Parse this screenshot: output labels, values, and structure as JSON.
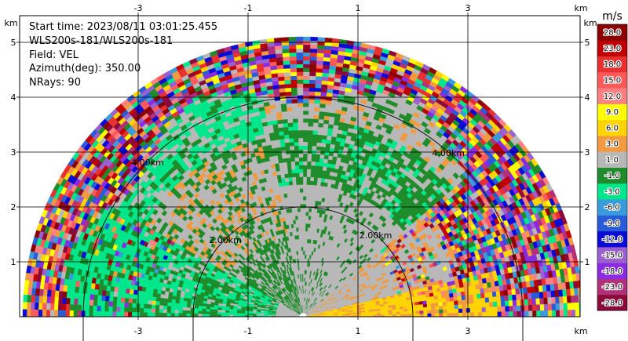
{
  "chart_data": {
    "type": "heatmap",
    "subtype": "polar-rhi-radar",
    "info": [
      "Start time: 2023/08/11 03:01:25.455",
      "WLS200s-181/WLS200s-181",
      "Field: VEL",
      "Azimuth(deg): 350.00",
      "NRays: 90"
    ],
    "x_ticks": [
      "-3",
      "-1",
      "1",
      "3"
    ],
    "x_tick_values": [
      -3,
      -1,
      1,
      3
    ],
    "y_ticks": [
      "1",
      "2",
      "3",
      "4",
      "5"
    ],
    "y_tick_values": [
      1,
      2,
      3,
      4,
      5
    ],
    "unit_label": "km",
    "xlim": [
      -6.0,
      4.1
    ],
    "ylim": [
      0,
      5.9
    ],
    "max_range_km": 5.1,
    "rings": [
      {
        "radius_km": 2,
        "label": "2.00km"
      },
      {
        "radius_km": 4,
        "label": "4.00km"
      }
    ],
    "colorbar": {
      "title": "m/s",
      "levels": [
        "-28.0",
        "-23.0",
        "-18.0",
        "-15.0",
        "-12.0",
        "-9.0",
        "-6.0",
        "-3.0",
        "-1.0",
        "1.0",
        "3.0",
        "6.0",
        "9.0",
        "12.0",
        "15.0",
        "18.0",
        "23.0",
        "28.0"
      ],
      "colors": [
        "#8b0a3a",
        "#b0307a",
        "#8a2be2",
        "#9b5fd0",
        "#0b0bd6",
        "#2a5bd7",
        "#3a9bdc",
        "#00e68a",
        "#1e8c2a",
        "#b8b8b8",
        "#f29a40",
        "#ffd400",
        "#ffff00",
        "#ff8080",
        "#ff5a5a",
        "#e83030",
        "#c00000",
        "#8b0000"
      ]
    }
  },
  "colors": {
    "near_zero": "#b8b8b8",
    "neg_small": "#1e8c2a",
    "neg_mid": "#00e68a",
    "pos_small": "#f29a40",
    "pos_mid": "#ffd400"
  }
}
